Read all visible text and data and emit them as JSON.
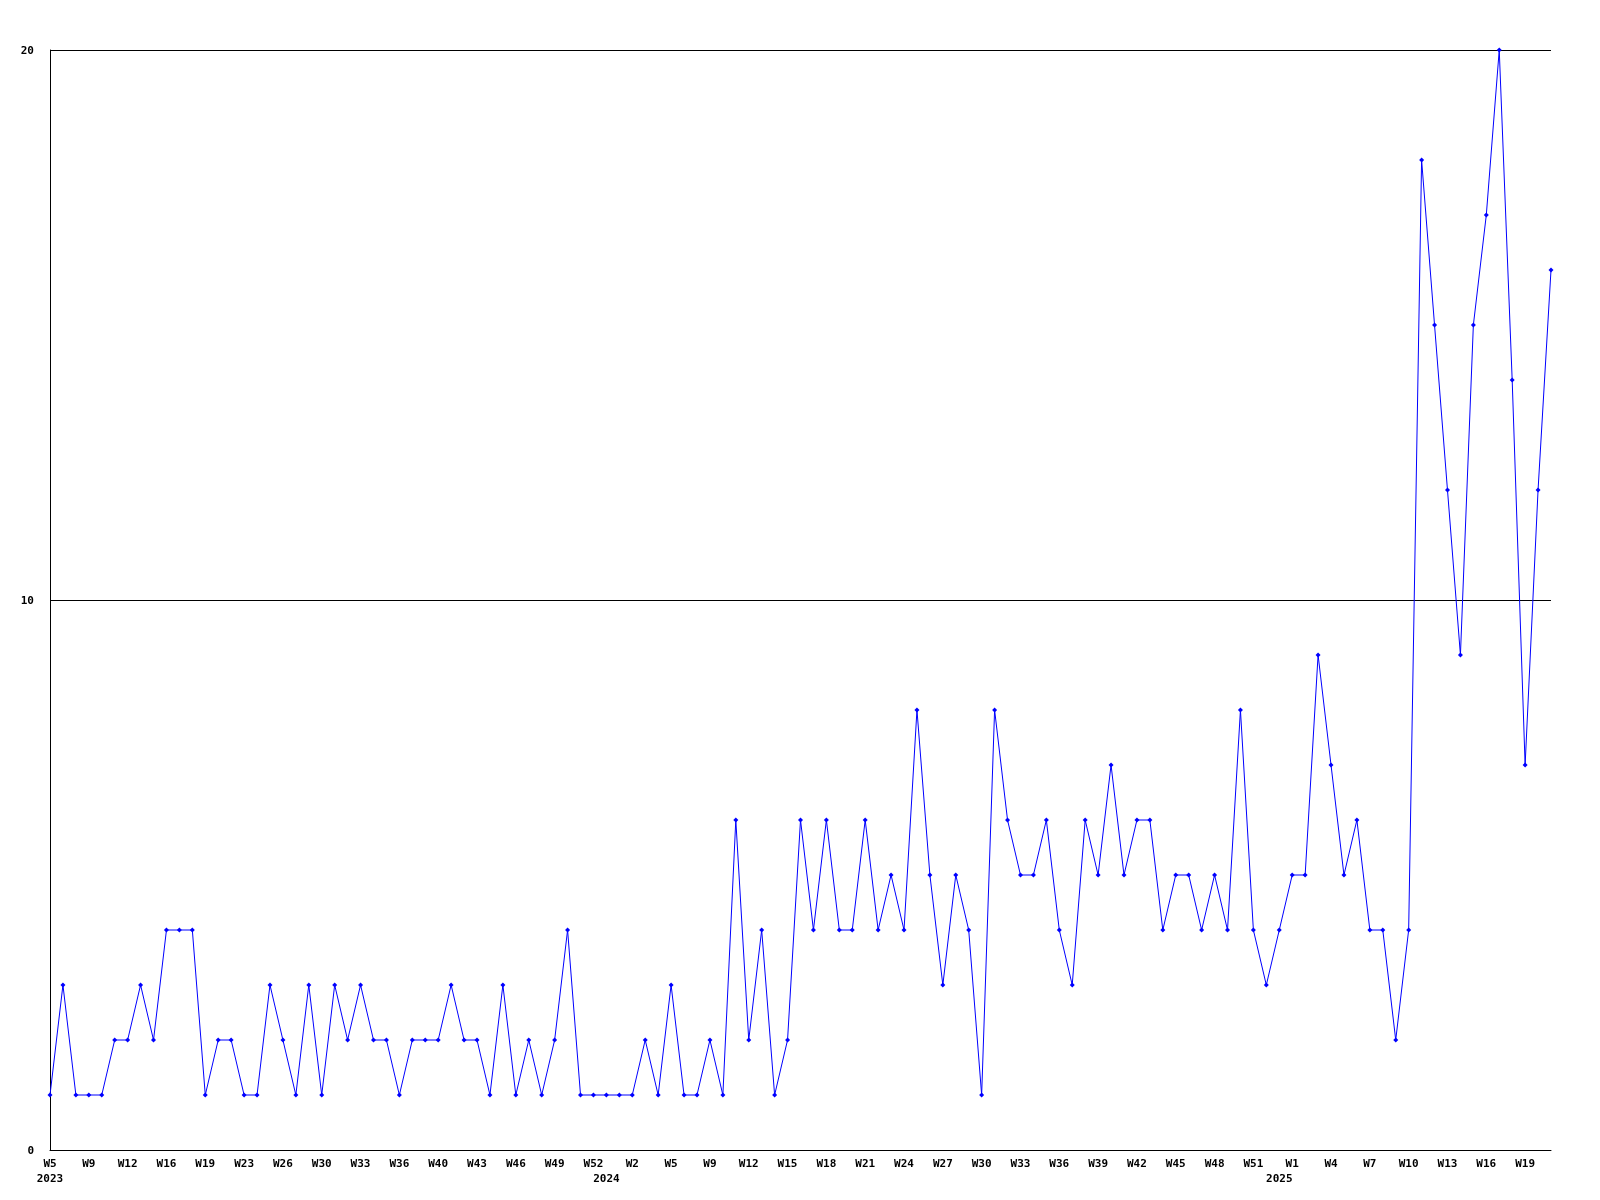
{
  "chart_data": {
    "type": "line",
    "categories": [
      "W5\n2023",
      null,
      null,
      "W9",
      null,
      null,
      "W12",
      null,
      null,
      "W16",
      null,
      null,
      "W19",
      null,
      null,
      "W23",
      null,
      null,
      "W26",
      null,
      null,
      "W30",
      null,
      null,
      "W33",
      null,
      null,
      "W36",
      null,
      null,
      "W40",
      null,
      null,
      "W43",
      null,
      null,
      "W46",
      null,
      null,
      "W49",
      null,
      null,
      "W52",
      "\n2024",
      null,
      "W2",
      null,
      null,
      "W5",
      null,
      null,
      "W9",
      null,
      null,
      "W12",
      null,
      null,
      "W15",
      null,
      null,
      "W18",
      null,
      null,
      "W21",
      null,
      null,
      "W24",
      null,
      null,
      "W27",
      null,
      null,
      "W30",
      null,
      null,
      "W33",
      null,
      null,
      "W36",
      null,
      null,
      "W39",
      null,
      null,
      "W42",
      null,
      null,
      "W45",
      null,
      null,
      "W48",
      null,
      null,
      "W51",
      null,
      "\n2025",
      "W1",
      null,
      null,
      "W4",
      null,
      null,
      "W7",
      null,
      null,
      "W10",
      null,
      null,
      "W13",
      null,
      null,
      "W16",
      null,
      null,
      "W19",
      null,
      null
    ],
    "series": [
      {
        "color": "#0000ff",
        "values": [
          1,
          3,
          1,
          1,
          1,
          2,
          2,
          3,
          2,
          4,
          4,
          4,
          1,
          2,
          2,
          1,
          1,
          3,
          2,
          1,
          3,
          1,
          3,
          2,
          3,
          2,
          2,
          1,
          2,
          2,
          2,
          3,
          2,
          2,
          1,
          3,
          1,
          2,
          1,
          2,
          4,
          1,
          1,
          1,
          1,
          1,
          2,
          1,
          3,
          1,
          1,
          2,
          1,
          6,
          2,
          4,
          1,
          2,
          6,
          4,
          6,
          4,
          4,
          6,
          4,
          5,
          4,
          8,
          5,
          3,
          5,
          4,
          1,
          8,
          6,
          5,
          5,
          6,
          4,
          3,
          6,
          5,
          7,
          5,
          6,
          6,
          4,
          5,
          5,
          4,
          5,
          4,
          8,
          4,
          3,
          4,
          5,
          5,
          9,
          7,
          5,
          6,
          4,
          4,
          2,
          4,
          18,
          15,
          12,
          9,
          15,
          17,
          20,
          14,
          7,
          12,
          16
        ]
      }
    ],
    "ylim": [
      0,
      20
    ],
    "yticks": [
      0,
      10,
      20
    ],
    "grid": "y",
    "marker": "diamond",
    "line_style": "solid"
  }
}
